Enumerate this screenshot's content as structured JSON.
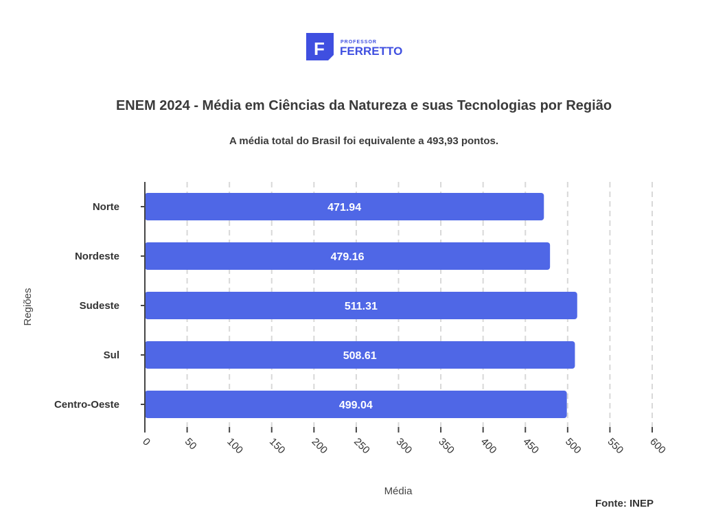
{
  "logo": {
    "small_text": "PROFESSOR",
    "big_text": "FERRETTO",
    "letter": "F",
    "color": "#3f4fe0"
  },
  "source": "Fonte: INEP",
  "chart_data": {
    "type": "bar",
    "orientation": "horizontal",
    "title": "ENEM 2024 - Média em Ciências da Natureza e suas Tecnologias por Região",
    "subtitle": "A média total do Brasil foi equivalente a 493,93 pontos.",
    "xlabel": "Média",
    "ylabel": "Regiões",
    "categories": [
      "Norte",
      "Nordeste",
      "Sudeste",
      "Sul",
      "Centro-Oeste"
    ],
    "values": [
      471.94,
      479.16,
      511.31,
      508.61,
      499.04
    ],
    "value_labels": [
      "471.94",
      "479.16",
      "511.31",
      "508.61",
      "499.04"
    ],
    "xlim": [
      0,
      600
    ],
    "ticks": [
      0,
      50,
      100,
      150,
      200,
      250,
      300,
      350,
      400,
      450,
      500,
      550,
      600
    ],
    "grid": "vertical dashed",
    "bar_color": "#4f67e6",
    "legend": "none"
  }
}
